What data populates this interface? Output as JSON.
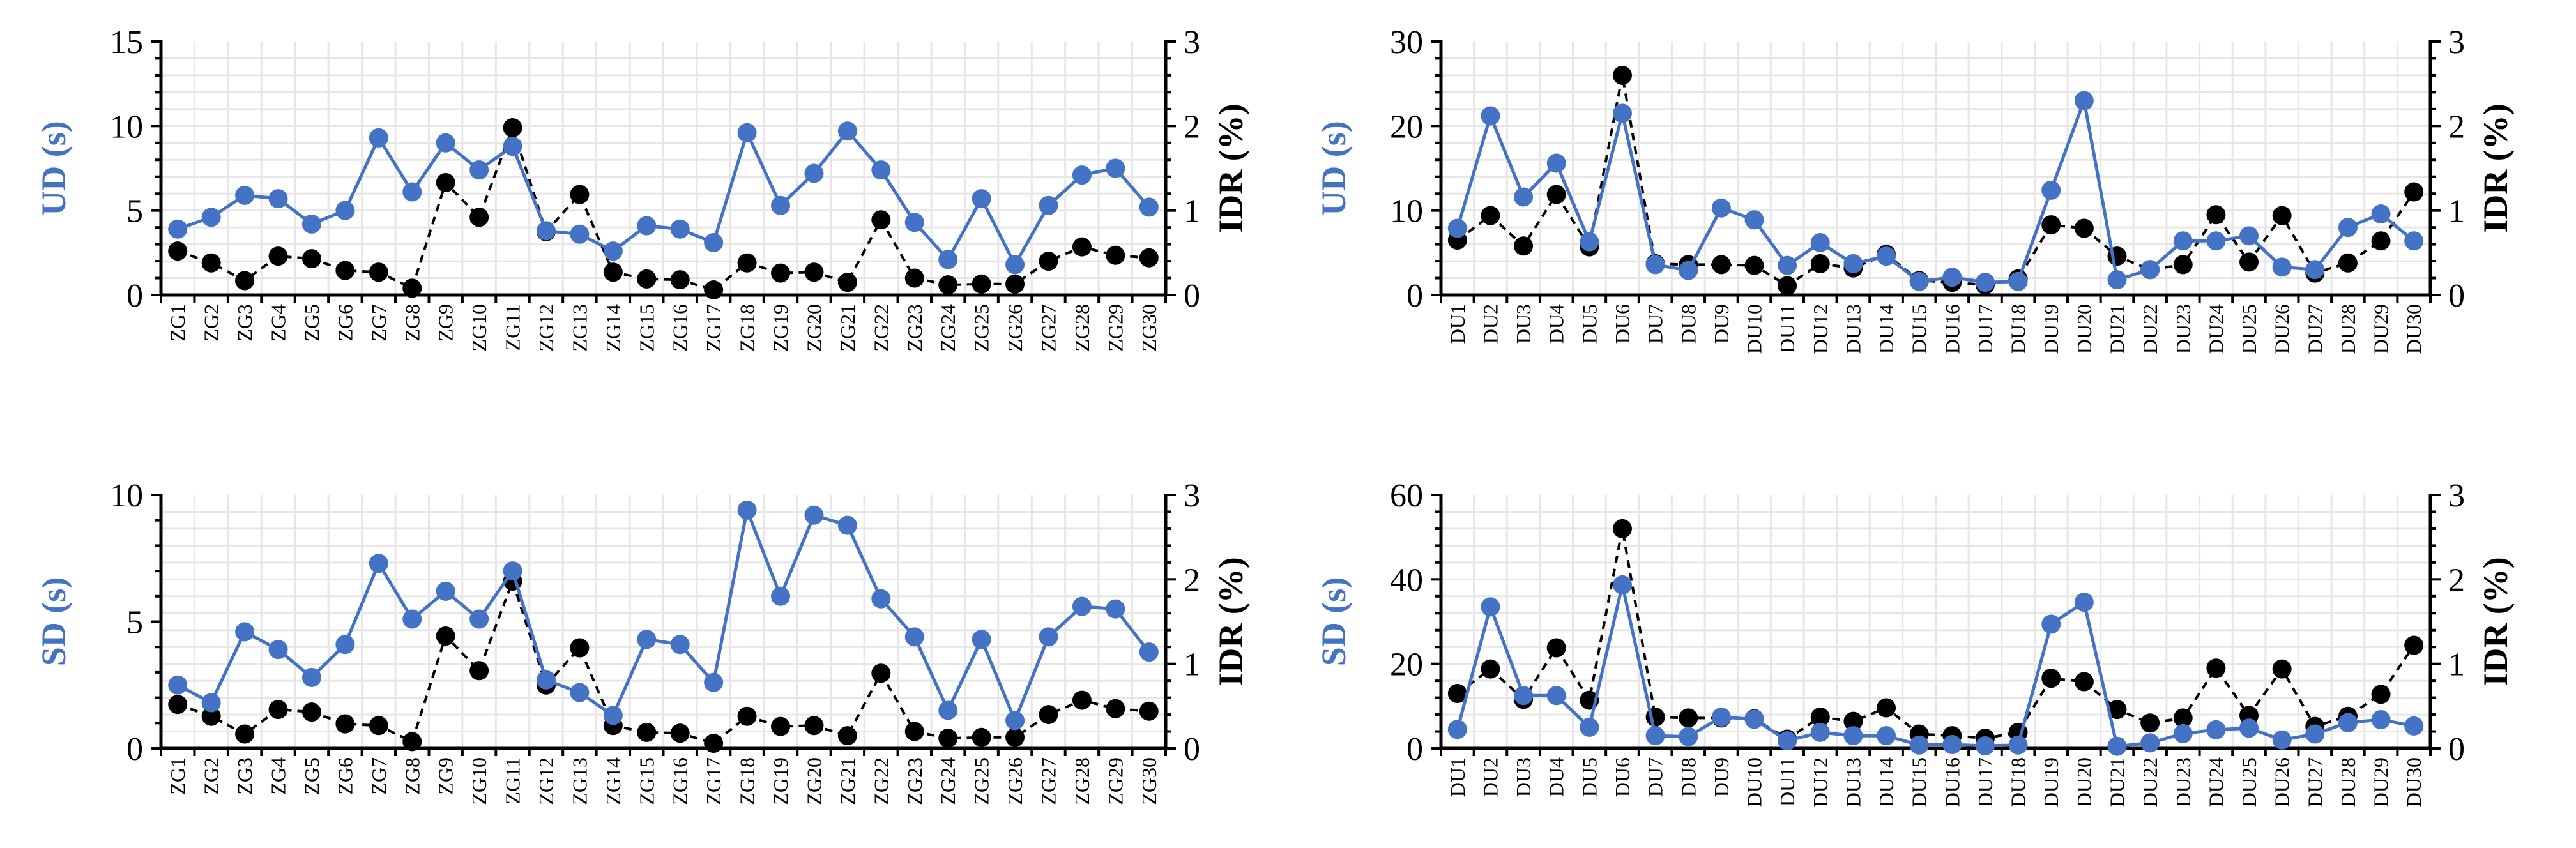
{
  "colors": {
    "primary_series": "#4472C4",
    "secondary_series": "#000000",
    "grid": "#e6e6e6"
  },
  "chart_data": [
    {
      "type": "line",
      "panel": "top-left",
      "categories": [
        "ZG1",
        "ZG2",
        "ZG3",
        "ZG4",
        "ZG5",
        "ZG6",
        "ZG7",
        "ZG8",
        "ZG9",
        "ZG10",
        "ZG11",
        "ZG12",
        "ZG13",
        "ZG14",
        "ZG15",
        "ZG16",
        "ZG17",
        "ZG18",
        "ZG19",
        "ZG20",
        "ZG21",
        "ZG22",
        "ZG23",
        "ZG24",
        "ZG25",
        "ZG26",
        "ZG27",
        "ZG28",
        "ZG29",
        "ZG30"
      ],
      "ylabel": "UD (s)",
      "y2label": "IDR (%)",
      "ylim": [
        0,
        15
      ],
      "yticks": [
        "0",
        "5",
        "10",
        "15"
      ],
      "y2lim": [
        0,
        3
      ],
      "y2ticks": [
        "0",
        "1",
        "2",
        "3"
      ],
      "series": [
        {
          "name": "UD (s)",
          "axis": "left",
          "style": "solid",
          "color": "#4472C4",
          "values": [
            3.9,
            4.6,
            5.9,
            5.7,
            4.2,
            5.0,
            9.3,
            6.1,
            9.0,
            7.4,
            8.8,
            3.8,
            3.6,
            2.6,
            4.1,
            3.9,
            3.1,
            9.6,
            5.3,
            7.2,
            9.7,
            7.4,
            4.3,
            2.1,
            5.7,
            1.8,
            5.3,
            7.1,
            7.5,
            5.2
          ]
        },
        {
          "name": "IDR (%)",
          "axis": "right",
          "style": "dashed",
          "color": "#000000",
          "values": [
            0.52,
            0.38,
            0.17,
            0.46,
            0.43,
            0.29,
            0.27,
            0.08,
            1.33,
            0.92,
            1.98,
            0.75,
            1.19,
            0.27,
            0.19,
            0.18,
            0.06,
            0.38,
            0.26,
            0.27,
            0.15,
            0.89,
            0.2,
            0.12,
            0.13,
            0.13,
            0.4,
            0.57,
            0.47,
            0.44
          ]
        }
      ]
    },
    {
      "type": "line",
      "panel": "top-right",
      "categories": [
        "DU1",
        "DU2",
        "DU3",
        "DU4",
        "DU5",
        "DU6",
        "DU7",
        "DU8",
        "DU9",
        "DU10",
        "DU11",
        "DU12",
        "DU13",
        "DU14",
        "DU15",
        "DU16",
        "DU17",
        "DU18",
        "DU19",
        "DU20",
        "DU21",
        "DU22",
        "DU23",
        "DU24",
        "DU25",
        "DU26",
        "DU27",
        "DU28",
        "DU29",
        "DU30"
      ],
      "ylabel": "UD (s)",
      "y2label": "IDR (%)",
      "ylim": [
        0,
        30
      ],
      "yticks": [
        "0",
        "10",
        "20",
        "30"
      ],
      "y2lim": [
        0,
        3
      ],
      "y2ticks": [
        "0",
        "1",
        "2",
        "3"
      ],
      "series": [
        {
          "name": "UD (s)",
          "axis": "left",
          "style": "solid",
          "color": "#4472C4",
          "values": [
            7.9,
            21.2,
            11.6,
            15.6,
            6.3,
            21.5,
            3.6,
            2.9,
            10.3,
            8.9,
            3.5,
            6.2,
            3.7,
            4.6,
            1.6,
            2.1,
            1.5,
            1.6,
            12.4,
            23.0,
            1.8,
            3.0,
            6.4,
            6.4,
            7.0,
            3.3,
            3.0,
            8.0,
            9.6,
            6.4
          ]
        },
        {
          "name": "IDR (%)",
          "axis": "right",
          "style": "dashed",
          "color": "#000000",
          "values": [
            0.65,
            0.94,
            0.58,
            1.19,
            0.57,
            2.6,
            0.37,
            0.36,
            0.36,
            0.35,
            0.11,
            0.37,
            0.32,
            0.48,
            0.17,
            0.15,
            0.12,
            0.19,
            0.83,
            0.79,
            0.46,
            0.3,
            0.36,
            0.95,
            0.39,
            0.94,
            0.26,
            0.38,
            0.64,
            1.22
          ]
        }
      ]
    },
    {
      "type": "line",
      "panel": "bottom-left",
      "categories": [
        "ZG1",
        "ZG2",
        "ZG3",
        "ZG4",
        "ZG5",
        "ZG6",
        "ZG7",
        "ZG8",
        "ZG9",
        "ZG10",
        "ZG11",
        "ZG12",
        "ZG13",
        "ZG14",
        "ZG15",
        "ZG16",
        "ZG17",
        "ZG18",
        "ZG19",
        "ZG20",
        "ZG21",
        "ZG22",
        "ZG23",
        "ZG24",
        "ZG25",
        "ZG26",
        "ZG27",
        "ZG28",
        "ZG29",
        "ZG30"
      ],
      "ylabel": "SD (s)",
      "y2label": "IDR (%)",
      "ylim": [
        0,
        10
      ],
      "yticks": [
        "0",
        "5",
        "10"
      ],
      "y2lim": [
        0,
        3
      ],
      "y2ticks": [
        "0",
        "1",
        "2",
        "3"
      ],
      "series": [
        {
          "name": "SD (s)",
          "axis": "left",
          "style": "solid",
          "color": "#4472C4",
          "values": [
            2.5,
            1.8,
            4.6,
            3.9,
            2.8,
            4.1,
            7.3,
            5.1,
            6.2,
            5.1,
            7.0,
            2.7,
            2.2,
            1.3,
            4.3,
            4.1,
            2.6,
            9.4,
            6.0,
            9.2,
            8.8,
            5.9,
            4.4,
            1.5,
            4.3,
            1.1,
            4.4,
            5.6,
            5.5,
            3.8
          ]
        },
        {
          "name": "IDR (%)",
          "axis": "right",
          "style": "dashed",
          "color": "#000000",
          "values": [
            0.52,
            0.38,
            0.17,
            0.46,
            0.43,
            0.29,
            0.27,
            0.08,
            1.33,
            0.92,
            1.98,
            0.75,
            1.19,
            0.27,
            0.19,
            0.18,
            0.06,
            0.38,
            0.26,
            0.27,
            0.15,
            0.89,
            0.2,
            0.12,
            0.13,
            0.13,
            0.4,
            0.57,
            0.47,
            0.44
          ]
        }
      ]
    },
    {
      "type": "line",
      "panel": "bottom-right",
      "categories": [
        "DU1",
        "DU2",
        "DU3",
        "DU4",
        "DU5",
        "DU6",
        "DU7",
        "DU8",
        "DU9",
        "DU10",
        "DU11",
        "DU12",
        "DU13",
        "DU14",
        "DU15",
        "DU16",
        "DU17",
        "DU18",
        "DU19",
        "DU20",
        "DU21",
        "DU22",
        "DU23",
        "DU24",
        "DU25",
        "DU26",
        "DU27",
        "DU28",
        "DU29",
        "DU30"
      ],
      "ylabel": "SD (s)",
      "y2label": "IDR (%)",
      "ylim": [
        0,
        60
      ],
      "yticks": [
        "0",
        "20",
        "40",
        "60"
      ],
      "y2lim": [
        0,
        3
      ],
      "y2ticks": [
        "0",
        "1",
        "2",
        "3"
      ],
      "series": [
        {
          "name": "SD (s)",
          "axis": "left",
          "style": "solid",
          "color": "#4472C4",
          "values": [
            4.5,
            33.5,
            12.5,
            12.5,
            5.0,
            38.7,
            3.0,
            2.8,
            7.4,
            6.9,
            1.8,
            3.8,
            3.0,
            3.0,
            0.8,
            0.9,
            0.6,
            0.8,
            29.4,
            34.6,
            0.5,
            1.3,
            3.5,
            4.4,
            4.8,
            2.0,
            3.4,
            6.1,
            6.8,
            5.3
          ]
        },
        {
          "name": "IDR (%)",
          "axis": "right",
          "style": "dashed",
          "color": "#000000",
          "values": [
            0.65,
            0.94,
            0.58,
            1.19,
            0.57,
            2.6,
            0.37,
            0.36,
            0.36,
            0.35,
            0.11,
            0.37,
            0.32,
            0.48,
            0.17,
            0.15,
            0.12,
            0.19,
            0.83,
            0.79,
            0.46,
            0.3,
            0.36,
            0.95,
            0.39,
            0.94,
            0.26,
            0.38,
            0.64,
            1.22
          ]
        }
      ]
    }
  ]
}
